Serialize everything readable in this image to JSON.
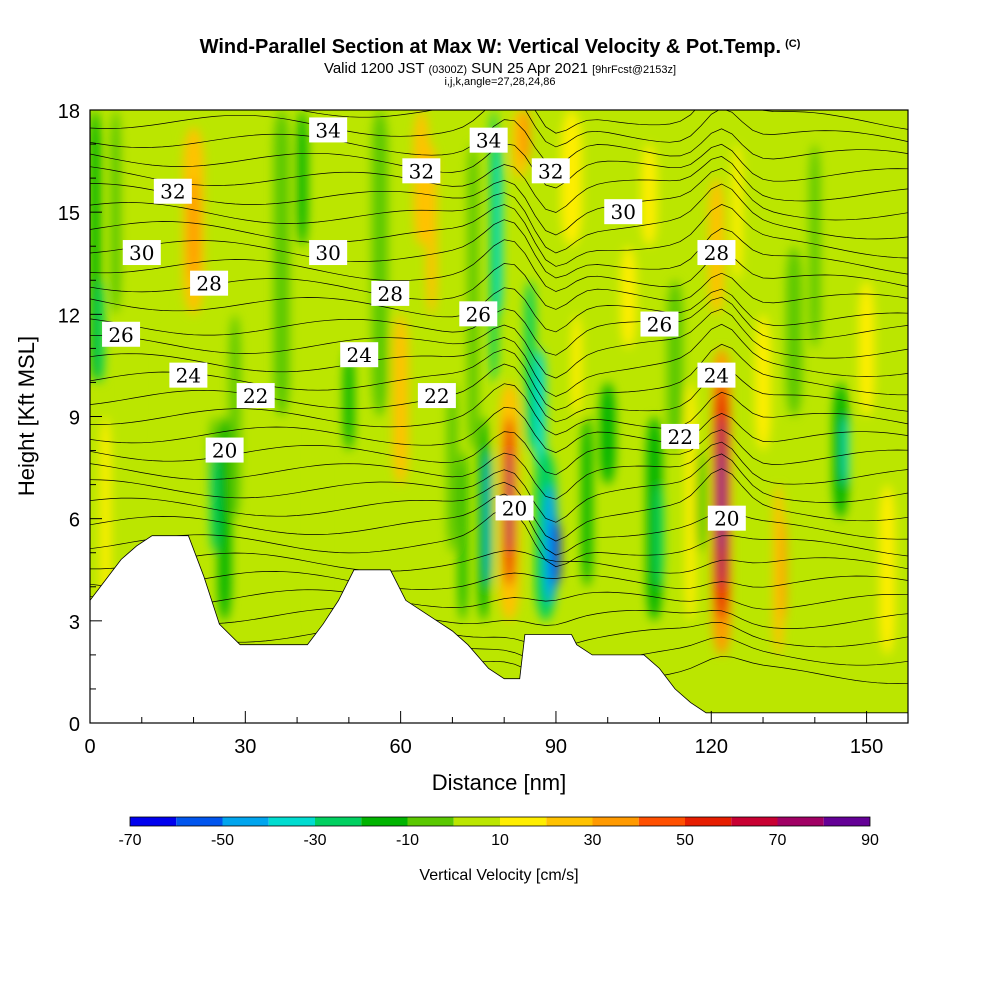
{
  "title": {
    "main": "Wind-Parallel Section at Max W: Vertical Velocity & Pot.Temp.",
    "copyright": "(C)",
    "valid": "Valid 1200 JST",
    "zulu": "(0300Z)",
    "date": "SUN 25 Apr 2021",
    "forecast": "[9hrFcst@2153z]",
    "indices": "i,j,k,angle=27,28,24,86"
  },
  "chart_data": {
    "type": "heatmap",
    "xlabel": "Distance [nm]",
    "ylabel": "Height [Kft MSL]",
    "xlim": [
      0,
      158
    ],
    "ylim": [
      0,
      18
    ],
    "x_ticks": [
      0,
      30,
      60,
      90,
      120,
      150
    ],
    "y_ticks": [
      0,
      3,
      6,
      9,
      12,
      15,
      18
    ],
    "colorbar": {
      "title": "Vertical Velocity [cm/s]",
      "range": [
        -70,
        90
      ],
      "tick_values": [
        -70,
        -50,
        -30,
        -10,
        10,
        30,
        50,
        70,
        90
      ],
      "colors": [
        "#0000ee",
        "#0055ee",
        "#00a5ee",
        "#00dcd0",
        "#00d060",
        "#00b400",
        "#5ac800",
        "#bbe600",
        "#ffee00",
        "#ffc200",
        "#ff9a00",
        "#ff5000",
        "#e61e00",
        "#c80032",
        "#a00064",
        "#640096"
      ]
    },
    "terrain_kft": [
      [
        0,
        3.6
      ],
      [
        3,
        4.2
      ],
      [
        6,
        4.8
      ],
      [
        9,
        5.2
      ],
      [
        12,
        5.5
      ],
      [
        19,
        5.5
      ],
      [
        22,
        4.3
      ],
      [
        25,
        2.9
      ],
      [
        29,
        2.3
      ],
      [
        42,
        2.3
      ],
      [
        45,
        2.9
      ],
      [
        48,
        3.6
      ],
      [
        51,
        4.5
      ],
      [
        58,
        4.5
      ],
      [
        61,
        3.6
      ],
      [
        64,
        3.3
      ],
      [
        67,
        3.0
      ],
      [
        70,
        2.7
      ],
      [
        73,
        2.3
      ],
      [
        77,
        1.6
      ],
      [
        80,
        1.3
      ],
      [
        83,
        1.3
      ],
      [
        84,
        2.6
      ],
      [
        93,
        2.6
      ],
      [
        94,
        2.3
      ],
      [
        97,
        2.0
      ],
      [
        107,
        2.0
      ],
      [
        110,
        1.6
      ],
      [
        113,
        1.0
      ],
      [
        116,
        0.6
      ],
      [
        119,
        0.3
      ],
      [
        158,
        0.3
      ]
    ],
    "updrafts": [
      {
        "x": 81,
        "y_range": [
          4,
          9.5
        ],
        "max": 70
      },
      {
        "x": 122,
        "y_range": [
          2,
          11
        ],
        "max": 90
      }
    ],
    "downdrafts": [
      {
        "x": 90,
        "y_range": [
          3,
          7
        ],
        "min": -70
      },
      {
        "x": 76,
        "y_range": [
          3,
          8
        ],
        "min": -50
      }
    ],
    "theta_contours": [
      {
        "value": "20",
        "labels": [
          [
            26,
            8
          ],
          [
            82,
            6.3
          ],
          [
            123,
            6
          ]
        ]
      },
      {
        "value": "22",
        "labels": [
          [
            32,
            9.6
          ],
          [
            67,
            9.6
          ],
          [
            114,
            8.4
          ]
        ]
      },
      {
        "value": "24",
        "labels": [
          [
            19,
            10.2
          ],
          [
            52,
            10.8
          ],
          [
            121,
            10.2
          ]
        ]
      },
      {
        "value": "26",
        "labels": [
          [
            6,
            11.4
          ],
          [
            75,
            12.0
          ],
          [
            110,
            11.7
          ]
        ]
      },
      {
        "value": "28",
        "labels": [
          [
            23,
            12.9
          ],
          [
            58,
            12.6
          ],
          [
            121,
            13.8
          ]
        ]
      },
      {
        "value": "30",
        "labels": [
          [
            10,
            13.8
          ],
          [
            46,
            13.8
          ],
          [
            103,
            15.0
          ]
        ]
      },
      {
        "value": "32",
        "labels": [
          [
            16,
            15.6
          ],
          [
            64,
            16.2
          ],
          [
            89,
            16.2
          ]
        ]
      },
      {
        "value": "34",
        "labels": [
          [
            46,
            17.4
          ],
          [
            77,
            17.1
          ]
        ]
      }
    ]
  }
}
